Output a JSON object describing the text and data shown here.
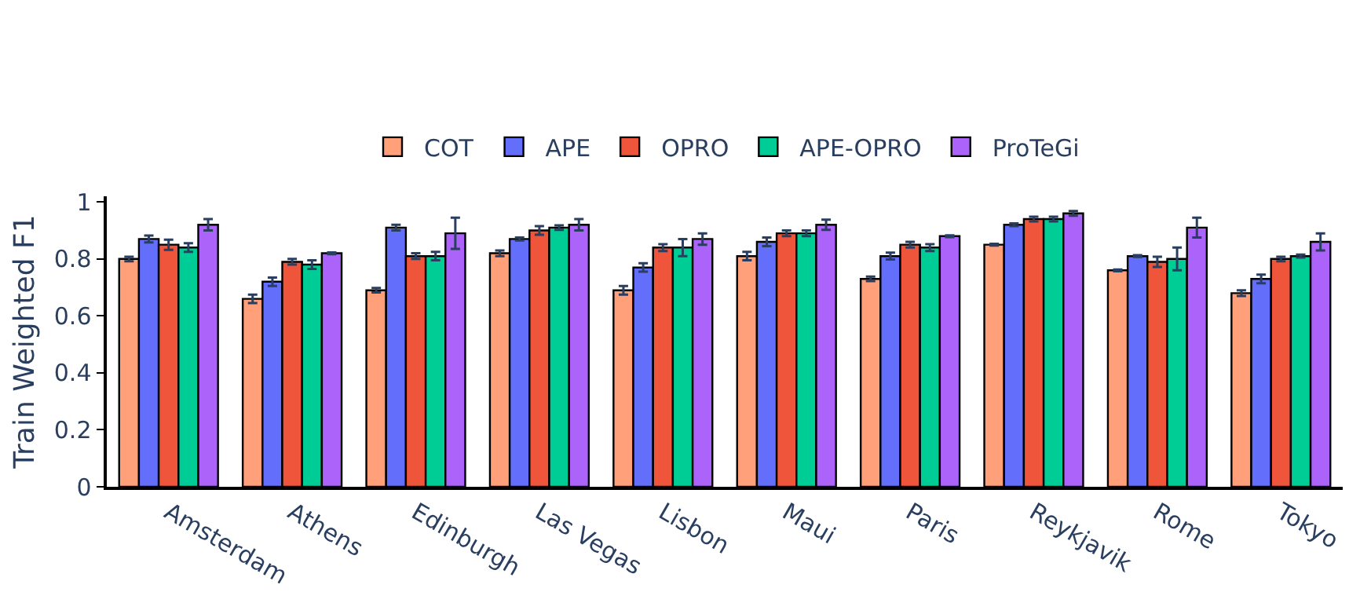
{
  "chart_data": {
    "type": "bar",
    "ylabel": "Train Weighted F1",
    "categories": [
      "Amsterdam",
      "Athens",
      "Edinburgh",
      "Las Vegas",
      "Lisbon",
      "Maui",
      "Paris",
      "Reykjavik",
      "Rome",
      "Tokyo"
    ],
    "series": [
      {
        "name": "COT",
        "color": "#ffa07a",
        "values": [
          0.8,
          0.66,
          0.69,
          0.82,
          0.69,
          0.81,
          0.73,
          0.85,
          0.76,
          0.68
        ],
        "errors": [
          0.008,
          0.015,
          0.008,
          0.01,
          0.015,
          0.015,
          0.008,
          0.003,
          0.003,
          0.01
        ]
      },
      {
        "name": "APE",
        "color": "#636efa",
        "values": [
          0.87,
          0.72,
          0.91,
          0.87,
          0.77,
          0.86,
          0.81,
          0.92,
          0.81,
          0.73
        ],
        "errors": [
          0.012,
          0.015,
          0.01,
          0.005,
          0.015,
          0.015,
          0.012,
          0.005,
          0.003,
          0.015
        ]
      },
      {
        "name": "OPRO",
        "color": "#ef553b",
        "values": [
          0.85,
          0.79,
          0.81,
          0.9,
          0.84,
          0.89,
          0.85,
          0.94,
          0.79,
          0.8
        ],
        "errors": [
          0.018,
          0.01,
          0.01,
          0.015,
          0.012,
          0.01,
          0.01,
          0.008,
          0.018,
          0.008
        ]
      },
      {
        "name": "APE-OPRO",
        "color": "#00cc96",
        "values": [
          0.84,
          0.78,
          0.81,
          0.91,
          0.84,
          0.89,
          0.84,
          0.94,
          0.8,
          0.81
        ],
        "errors": [
          0.015,
          0.015,
          0.015,
          0.008,
          0.03,
          0.01,
          0.012,
          0.008,
          0.04,
          0.005
        ]
      },
      {
        "name": "ProTeGi",
        "color": "#ab63fa",
        "values": [
          0.92,
          0.82,
          0.89,
          0.92,
          0.87,
          0.92,
          0.88,
          0.96,
          0.91,
          0.86
        ],
        "errors": [
          0.02,
          0.003,
          0.055,
          0.02,
          0.02,
          0.018,
          0.003,
          0.008,
          0.035,
          0.03
        ]
      }
    ],
    "ylim": [
      0,
      1.02
    ],
    "yticks": [
      0,
      0.2,
      0.4,
      0.6,
      0.8,
      1
    ],
    "grid": false,
    "legend": "top"
  }
}
